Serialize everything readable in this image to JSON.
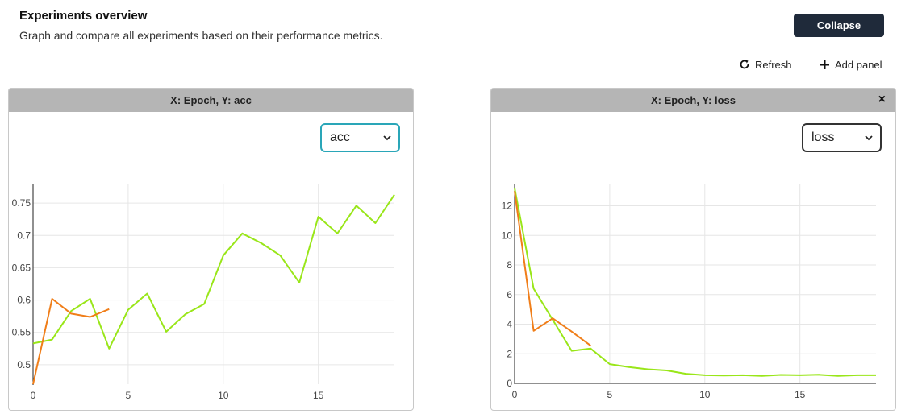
{
  "header": {
    "title": "Experiments overview",
    "subtitle": "Graph and compare all experiments based on their performance metrics.",
    "collapse_label": "Collapse",
    "refresh_label": "Refresh",
    "add_panel_label": "Add panel",
    "refresh_icon": "refresh-icon",
    "add_icon": "plus-icon"
  },
  "panels": [
    {
      "title": "X: Epoch, Y: acc",
      "selected_metric": "acc",
      "closable": false
    },
    {
      "title": "X: Epoch, Y: loss",
      "selected_metric": "loss",
      "closable": true,
      "close_label": "×"
    }
  ],
  "chart_data": [
    {
      "type": "line",
      "title": "X: Epoch, Y: acc",
      "xlabel": "",
      "ylabel": "",
      "xlim": [
        0,
        19
      ],
      "ylim": [
        0.47,
        0.78
      ],
      "x_ticks": [
        0,
        5,
        10,
        15
      ],
      "y_ticks": [
        0.5,
        0.55,
        0.6,
        0.65,
        0.7,
        0.75
      ],
      "y_tick_labels": [
        "0.5",
        "0.55",
        "0.6",
        "0.65",
        "0.7",
        "0.75"
      ],
      "grid": true,
      "series": [
        {
          "color": "#99e619",
          "x": [
            0,
            1,
            2,
            3,
            4,
            5,
            6,
            7,
            8,
            9,
            10,
            11,
            12,
            13,
            14,
            15,
            16,
            17,
            18,
            19
          ],
          "y": [
            0.533,
            0.539,
            0.583,
            0.602,
            0.525,
            0.585,
            0.61,
            0.551,
            0.578,
            0.594,
            0.669,
            0.703,
            0.688,
            0.669,
            0.627,
            0.729,
            0.703,
            0.746,
            0.719,
            0.763
          ]
        },
        {
          "color": "#f07e19",
          "x": [
            0,
            1,
            2,
            3,
            4
          ],
          "y": [
            0.47,
            0.602,
            0.579,
            0.574,
            0.586
          ]
        }
      ]
    },
    {
      "type": "line",
      "title": "X: Epoch, Y: loss",
      "xlabel": "",
      "ylabel": "",
      "xlim": [
        0,
        19
      ],
      "ylim": [
        0,
        13.5
      ],
      "x_ticks": [
        0,
        5,
        10,
        15
      ],
      "y_ticks": [
        0,
        2,
        4,
        6,
        8,
        10,
        12
      ],
      "y_tick_labels": [
        "0",
        "2",
        "4",
        "6",
        "8",
        "10",
        "12"
      ],
      "grid": true,
      "series": [
        {
          "color": "#99e619",
          "x": [
            0,
            1,
            2,
            3,
            4,
            5,
            6,
            7,
            8,
            9,
            10,
            11,
            12,
            13,
            14,
            15,
            16,
            17,
            18,
            19
          ],
          "y": [
            13.2,
            6.4,
            4.3,
            2.2,
            2.35,
            1.3,
            1.1,
            0.95,
            0.87,
            0.65,
            0.55,
            0.53,
            0.55,
            0.5,
            0.57,
            0.55,
            0.58,
            0.5,
            0.55,
            0.55
          ]
        },
        {
          "color": "#f07e19",
          "x": [
            0,
            1,
            2,
            3,
            4
          ],
          "y": [
            13.0,
            3.55,
            4.4,
            3.5,
            2.55
          ]
        }
      ]
    }
  ]
}
